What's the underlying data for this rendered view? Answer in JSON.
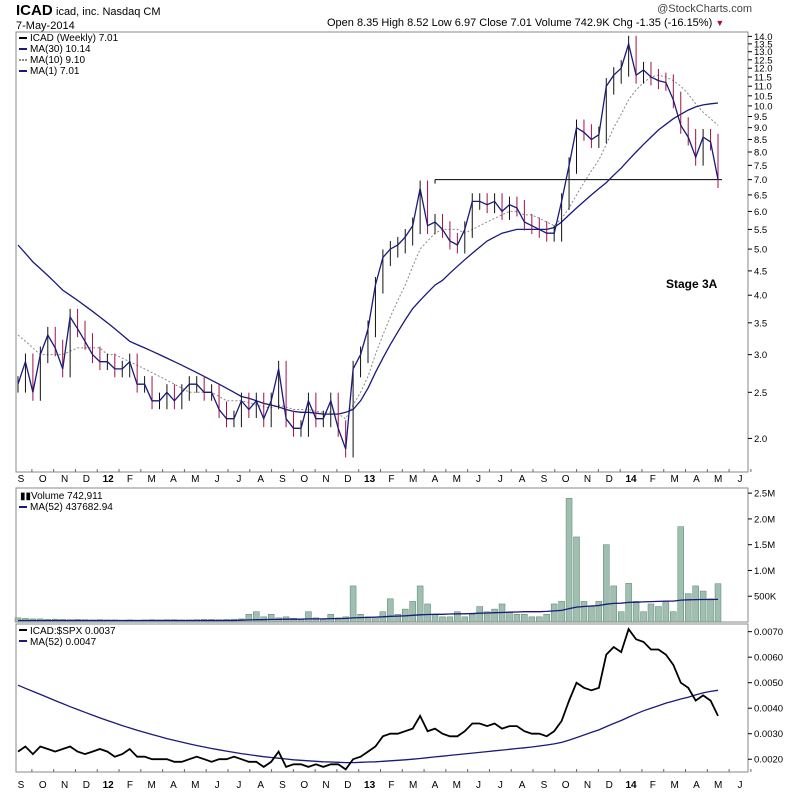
{
  "header": {
    "symbol": "ICAD",
    "company": "icad, inc.  Nasdaq CM",
    "date": "7-May-2014",
    "quote": "Open 8.35  High 8.52  Low 6.97  Close 7.01  Volume 742.9K  Chg -1.35 (-16.15%)",
    "change_marker": "▼",
    "logo": "@StockCharts.com"
  },
  "colors": {
    "price": "#1a1a7a",
    "ma30": "#1a1a7a",
    "ma10": "#888888",
    "up_bar": "#111111",
    "down_bar": "#a0104a",
    "volume": "#9fbfb0",
    "volume_border": "#5f7f70",
    "ratio": "#000000",
    "resistance": "#000000"
  },
  "annotation": "Stage 3A",
  "chart_data": [
    {
      "type": "line",
      "title": "ICAD (Weekly) 7.01",
      "legend": [
        "ICAD (Weekly) 7.01",
        "MA(30) 10.14",
        "MA(10) 9.10",
        "MA(1) 7.01"
      ],
      "scale": "log",
      "ylim": [
        1.7,
        14.3
      ],
      "yticks": [
        "2.0",
        "2.5",
        "3.0",
        "3.5",
        "4.0",
        "4.5",
        "5.0",
        "5.5",
        "6.0",
        "6.5",
        "7.0",
        "7.5",
        "8.0",
        "8.5",
        "9.0",
        "9.5",
        "10.0",
        "10.5",
        "11.0",
        "11.5",
        "12.0",
        "12.5",
        "13.0",
        "13.5",
        "14.0"
      ],
      "x_labels": [
        "S",
        "O",
        "N",
        "D",
        "12",
        "F",
        "M",
        "A",
        "M",
        "J",
        "J",
        "A",
        "S",
        "O",
        "N",
        "D",
        "13",
        "F",
        "M",
        "A",
        "M",
        "J",
        "J",
        "A",
        "S",
        "O",
        "N",
        "D",
        "14",
        "F",
        "M",
        "A",
        "M",
        "J"
      ],
      "resistance": 7.0,
      "series": [
        {
          "name": "MA(1) 7.01",
          "values": [
            2.6,
            2.9,
            2.5,
            3.0,
            3.3,
            3.1,
            2.8,
            3.6,
            3.4,
            3.2,
            3.0,
            2.9,
            2.9,
            2.8,
            2.8,
            2.9,
            2.6,
            2.6,
            2.4,
            2.4,
            2.5,
            2.4,
            2.5,
            2.6,
            2.6,
            2.5,
            2.5,
            2.3,
            2.2,
            2.2,
            2.4,
            2.3,
            2.4,
            2.2,
            2.4,
            2.8,
            2.2,
            2.1,
            2.1,
            2.4,
            2.2,
            2.2,
            2.4,
            2.1,
            1.9,
            2.8,
            3.0,
            3.4,
            4.2,
            4.8,
            5.0,
            5.1,
            5.3,
            5.6,
            6.7,
            5.6,
            5.7,
            5.5,
            5.2,
            5.1,
            5.5,
            6.3,
            6.3,
            6.2,
            6.3,
            6.0,
            6.2,
            6.1,
            5.7,
            5.6,
            5.5,
            5.4,
            5.4,
            6.3,
            7.5,
            9.0,
            8.8,
            8.5,
            8.7,
            11.0,
            11.6,
            12.0,
            13.5,
            11.6,
            11.9,
            11.5,
            11.3,
            11.2,
            10.3,
            9.1,
            8.6,
            7.8,
            8.6,
            8.4,
            7.0
          ]
        },
        {
          "name": "MA(10) 9.10",
          "values": [
            3.3,
            3.2,
            3.1,
            3.0,
            3.0,
            3.0,
            3.0,
            3.05,
            3.1,
            3.1,
            3.1,
            3.1,
            3.0,
            3.0,
            2.95,
            2.9,
            2.85,
            2.8,
            2.75,
            2.7,
            2.65,
            2.6,
            2.55,
            2.5,
            2.5,
            2.5,
            2.5,
            2.45,
            2.4,
            2.4,
            2.4,
            2.38,
            2.35,
            2.33,
            2.32,
            2.35,
            2.33,
            2.3,
            2.3,
            2.3,
            2.28,
            2.27,
            2.27,
            2.25,
            2.2,
            2.35,
            2.5,
            2.7,
            3.0,
            3.3,
            3.6,
            3.9,
            4.2,
            4.6,
            5.0,
            5.2,
            5.4,
            5.5,
            5.5,
            5.5,
            5.4,
            5.5,
            5.6,
            5.7,
            5.8,
            5.9,
            6.0,
            6.0,
            5.9,
            5.9,
            5.8,
            5.7,
            5.6,
            5.8,
            6.1,
            6.5,
            6.9,
            7.3,
            7.7,
            8.3,
            9.0,
            9.6,
            10.3,
            10.8,
            11.2,
            11.5,
            11.6,
            11.5,
            11.3,
            11.0,
            10.6,
            10.1,
            9.7,
            9.4,
            9.1
          ]
        },
        {
          "name": "MA(30) 10.14",
          "values": [
            5.1,
            4.9,
            4.7,
            4.55,
            4.4,
            4.25,
            4.1,
            4.0,
            3.9,
            3.8,
            3.7,
            3.6,
            3.5,
            3.4,
            3.3,
            3.2,
            3.15,
            3.1,
            3.05,
            3.0,
            2.95,
            2.9,
            2.85,
            2.8,
            2.75,
            2.7,
            2.65,
            2.6,
            2.55,
            2.5,
            2.45,
            2.43,
            2.4,
            2.37,
            2.35,
            2.33,
            2.3,
            2.28,
            2.27,
            2.27,
            2.26,
            2.25,
            2.25,
            2.25,
            2.27,
            2.3,
            2.4,
            2.55,
            2.75,
            2.95,
            3.15,
            3.35,
            3.55,
            3.75,
            3.9,
            4.05,
            4.2,
            4.3,
            4.45,
            4.6,
            4.75,
            4.9,
            5.05,
            5.2,
            5.3,
            5.4,
            5.45,
            5.5,
            5.5,
            5.5,
            5.5,
            5.5,
            5.55,
            5.7,
            5.9,
            6.1,
            6.3,
            6.5,
            6.7,
            6.9,
            7.15,
            7.4,
            7.7,
            8.0,
            8.3,
            8.6,
            8.9,
            9.15,
            9.4,
            9.6,
            9.8,
            9.95,
            10.05,
            10.1,
            10.14
          ]
        }
      ]
    },
    {
      "type": "bar",
      "title": "Volume 742,911",
      "legend": [
        "Volume 742,911",
        "MA(52) 437682.94"
      ],
      "ylim": [
        0,
        2600000
      ],
      "yticks": [
        "500K",
        "1.0M",
        "1.5M",
        "2.0M",
        "2.5M"
      ],
      "series": [
        {
          "name": "Volume 742,911",
          "values": [
            80000,
            70000,
            60000,
            60000,
            50000,
            55000,
            50000,
            45000,
            50000,
            45000,
            40000,
            45000,
            40000,
            40000,
            35000,
            40000,
            35000,
            40000,
            45000,
            40000,
            45000,
            45000,
            40000,
            40000,
            45000,
            50000,
            50000,
            45000,
            50000,
            55000,
            60000,
            150000,
            200000,
            100000,
            150000,
            80000,
            100000,
            70000,
            50000,
            200000,
            80000,
            50000,
            150000,
            80000,
            100000,
            700000,
            150000,
            100000,
            100000,
            200000,
            450000,
            150000,
            250000,
            400000,
            700000,
            350000,
            150000,
            100000,
            100000,
            200000,
            100000,
            150000,
            300000,
            200000,
            250000,
            350000,
            200000,
            150000,
            150000,
            100000,
            100000,
            150000,
            350000,
            400000,
            2400000,
            1650000,
            400000,
            300000,
            400000,
            1500000,
            700000,
            200000,
            750000,
            400000,
            200000,
            350000,
            300000,
            400000,
            200000,
            1850000,
            550000,
            700000,
            600000,
            450000,
            742911
          ]
        },
        {
          "name": "MA(52) 437682.94",
          "values": [
            30000,
            30000,
            30000,
            30000,
            30000,
            30000,
            30000,
            30000,
            30000,
            30000,
            30000,
            30000,
            30000,
            30000,
            30000,
            30000,
            30000,
            30000,
            30000,
            30000,
            30000,
            30000,
            30000,
            30000,
            30000,
            30000,
            30000,
            30000,
            30000,
            30000,
            35000,
            40000,
            45000,
            45000,
            50000,
            50000,
            55000,
            55000,
            55000,
            60000,
            60000,
            60000,
            65000,
            65000,
            70000,
            80000,
            85000,
            90000,
            95000,
            100000,
            110000,
            115000,
            120000,
            130000,
            140000,
            145000,
            150000,
            150000,
            155000,
            160000,
            160000,
            165000,
            170000,
            175000,
            180000,
            185000,
            190000,
            195000,
            200000,
            200000,
            200000,
            205000,
            215000,
            225000,
            260000,
            290000,
            300000,
            310000,
            320000,
            345000,
            360000,
            365000,
            380000,
            385000,
            390000,
            395000,
            400000,
            405000,
            405000,
            425000,
            430000,
            435000,
            437000,
            437500,
            437683
          ]
        }
      ]
    },
    {
      "type": "line",
      "title": "ICAD:$SPX 0.0037",
      "legend": [
        "ICAD:$SPX 0.0037",
        "MA(52) 0.0047"
      ],
      "ylim": [
        0.0015,
        0.0073
      ],
      "yticks": [
        "0.0020",
        "0.0030",
        "0.0040",
        "0.0050",
        "0.0060",
        "0.0070"
      ],
      "series": [
        {
          "name": "ICAD:$SPX 0.0037",
          "values": [
            0.0023,
            0.0025,
            0.0022,
            0.0025,
            0.0024,
            0.0023,
            0.0024,
            0.0025,
            0.0023,
            0.0022,
            0.0023,
            0.0024,
            0.0023,
            0.0021,
            0.0022,
            0.0024,
            0.0021,
            0.0021,
            0.002,
            0.002,
            0.002,
            0.0019,
            0.0019,
            0.002,
            0.0021,
            0.002,
            0.0019,
            0.002,
            0.002,
            0.0021,
            0.002,
            0.0019,
            0.0019,
            0.0017,
            0.0019,
            0.0023,
            0.0017,
            0.0018,
            0.0018,
            0.0017,
            0.0018,
            0.0017,
            0.0018,
            0.0018,
            0.0016,
            0.002,
            0.0021,
            0.0023,
            0.0025,
            0.0029,
            0.003,
            0.003,
            0.0031,
            0.0032,
            0.0037,
            0.0031,
            0.0032,
            0.003,
            0.0029,
            0.0029,
            0.0031,
            0.0034,
            0.0034,
            0.0033,
            0.0034,
            0.0032,
            0.0033,
            0.0033,
            0.0031,
            0.003,
            0.003,
            0.0029,
            0.0031,
            0.0035,
            0.0043,
            0.005,
            0.0048,
            0.0047,
            0.0048,
            0.0061,
            0.0064,
            0.0062,
            0.0071,
            0.0067,
            0.0066,
            0.0063,
            0.0063,
            0.0061,
            0.0057,
            0.005,
            0.0048,
            0.0043,
            0.0045,
            0.0043,
            0.0037
          ]
        },
        {
          "name": "MA(52) 0.0047",
          "values": [
            0.0049,
            0.00478,
            0.00466,
            0.00454,
            0.00442,
            0.0043,
            0.00418,
            0.00406,
            0.00395,
            0.00384,
            0.00373,
            0.00362,
            0.00352,
            0.00342,
            0.00332,
            0.00323,
            0.00314,
            0.00305,
            0.00297,
            0.00289,
            0.00281,
            0.00274,
            0.00267,
            0.0026,
            0.00254,
            0.00248,
            0.00242,
            0.00237,
            0.00232,
            0.00227,
            0.00222,
            0.00218,
            0.00214,
            0.0021,
            0.00207,
            0.00204,
            0.00201,
            0.00198,
            0.00196,
            0.00194,
            0.00192,
            0.0019,
            0.00189,
            0.00188,
            0.00187,
            0.00187,
            0.00188,
            0.00189,
            0.0019,
            0.00192,
            0.00194,
            0.00196,
            0.00198,
            0.002,
            0.00203,
            0.00206,
            0.00209,
            0.00212,
            0.00215,
            0.00218,
            0.00221,
            0.00224,
            0.00227,
            0.0023,
            0.00233,
            0.00236,
            0.00239,
            0.00242,
            0.00245,
            0.00248,
            0.00252,
            0.00256,
            0.0026,
            0.00266,
            0.00275,
            0.00285,
            0.00295,
            0.00305,
            0.00315,
            0.00328,
            0.0034,
            0.00352,
            0.00365,
            0.00378,
            0.0039,
            0.004,
            0.0041,
            0.0042,
            0.00428,
            0.00436,
            0.00443,
            0.00452,
            0.0046,
            0.00466,
            0.0047
          ]
        }
      ]
    }
  ]
}
